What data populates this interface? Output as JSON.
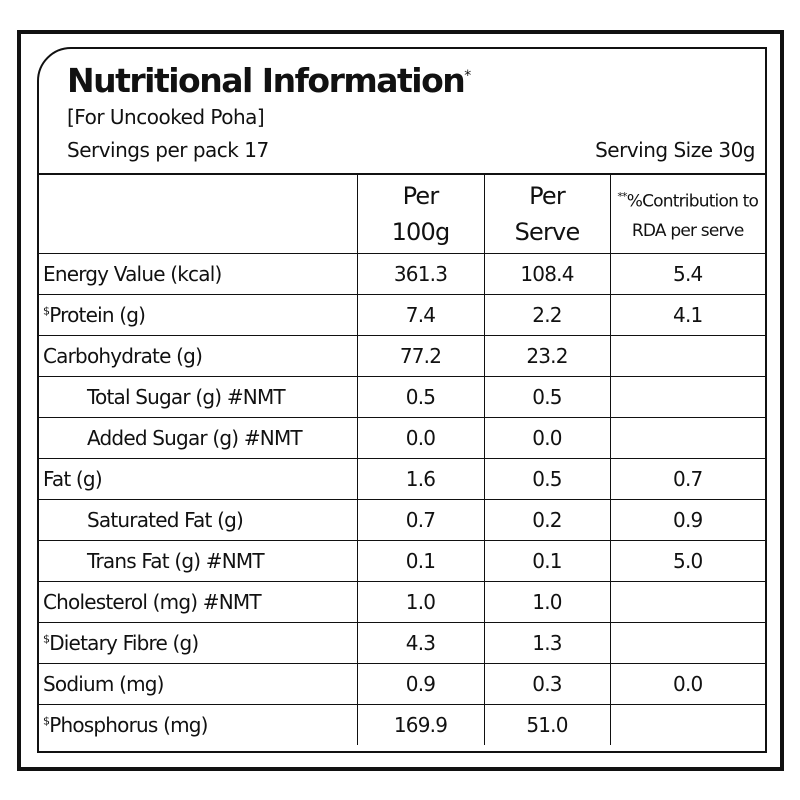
{
  "header": {
    "title": "Nutritional Information",
    "title_mark": "*",
    "subtitle": "[For Uncooked Poha]",
    "servings": "Servings per pack 17",
    "serving_size": "Serving Size 30g"
  },
  "columns": {
    "per100_line1": "Per",
    "per100_line2": "100g",
    "perserve_line1": "Per",
    "perserve_line2": "Serve",
    "rda_mark": "**",
    "rda_line1": "%Contribution to",
    "rda_line2": "RDA per serve"
  },
  "rows": [
    {
      "mark": "",
      "name": "Energy Value (kcal)",
      "indent": false,
      "per100": "361.3",
      "serve": "108.4",
      "rda": "5.4"
    },
    {
      "mark": "$",
      "name": "Protein (g)",
      "indent": false,
      "per100": "7.4",
      "serve": "2.2",
      "rda": "4.1"
    },
    {
      "mark": "",
      "name": "Carbohydrate (g)",
      "indent": false,
      "per100": "77.2",
      "serve": "23.2",
      "rda": ""
    },
    {
      "mark": "",
      "name": "Total Sugar (g) #NMT",
      "indent": true,
      "per100": "0.5",
      "serve": "0.5",
      "rda": ""
    },
    {
      "mark": "",
      "name": "Added Sugar (g) #NMT",
      "indent": true,
      "per100": "0.0",
      "serve": "0.0",
      "rda": ""
    },
    {
      "mark": "",
      "name": "Fat (g)",
      "indent": false,
      "per100": "1.6",
      "serve": "0.5",
      "rda": "0.7"
    },
    {
      "mark": "",
      "name": "Saturated Fat (g)",
      "indent": true,
      "per100": "0.7",
      "serve": "0.2",
      "rda": "0.9"
    },
    {
      "mark": "",
      "name": "Trans Fat (g) #NMT",
      "indent": true,
      "per100": "0.1",
      "serve": "0.1",
      "rda": "5.0"
    },
    {
      "mark": "",
      "name": "Cholesterol (mg) #NMT",
      "indent": false,
      "per100": "1.0",
      "serve": "1.0",
      "rda": ""
    },
    {
      "mark": "$",
      "name": "Dietary Fibre (g)",
      "indent": false,
      "per100": "4.3",
      "serve": "1.3",
      "rda": ""
    },
    {
      "mark": "",
      "name": "Sodium (mg)",
      "indent": false,
      "per100": "0.9",
      "serve": "0.3",
      "rda": "0.0"
    },
    {
      "mark": "$",
      "name": "Phosphorus (mg)",
      "indent": false,
      "per100": "169.9",
      "serve": "51.0",
      "rda": ""
    }
  ]
}
